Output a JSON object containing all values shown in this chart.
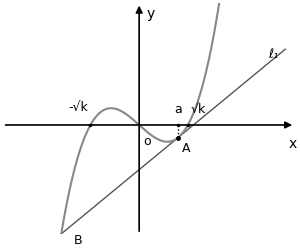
{
  "title": "",
  "bg_color": "#ffffff",
  "curve_color": "#888888",
  "line_color": "#555555",
  "axis_color": "#000000",
  "x_range": [
    -2.8,
    3.2
  ],
  "y_range": [
    -2.5,
    2.8
  ],
  "figsize": [
    3.0,
    2.5
  ],
  "dpi": 100,
  "k": 1.0,
  "a": 0.8,
  "labels": {
    "neg_sqrtk": "-√k",
    "origin": "o",
    "a_label": "a",
    "sqrtk": "√k",
    "A_label": "A",
    "B_label": "B",
    "l1_label": "ℓ₁",
    "y_label": "y",
    "x_label": "x"
  }
}
